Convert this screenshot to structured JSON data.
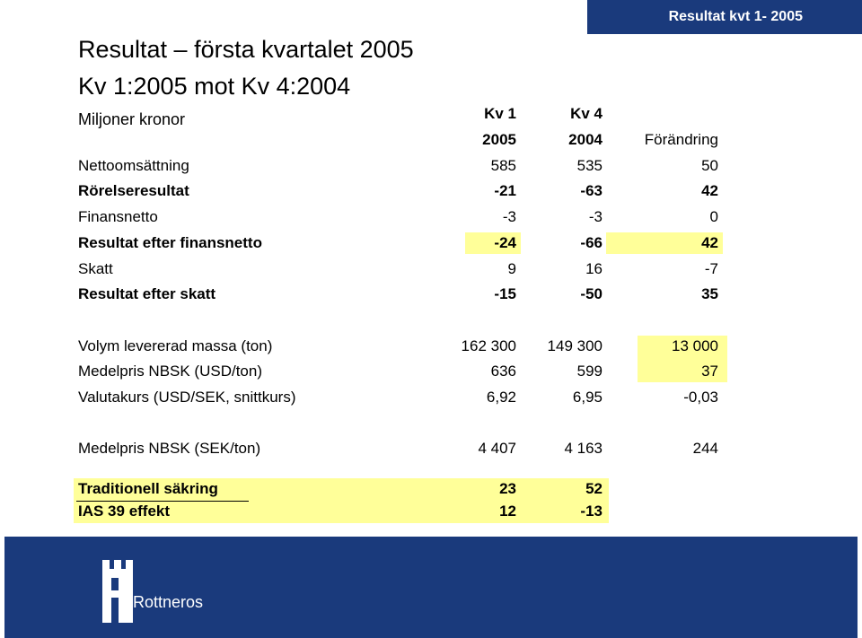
{
  "header": {
    "badge": "Resultat kvt 1- 2005"
  },
  "title": {
    "line1": "Resultat – första kvartalet 2005",
    "line2": "Kv 1:2005 mot Kv 4:2004"
  },
  "table": {
    "unit_label": "Miljoner kronor",
    "col1": {
      "top": "Kv 1",
      "bottom": "2005"
    },
    "col2": {
      "top": "Kv 4",
      "bottom": "2004"
    },
    "col3": {
      "bottom": "Förändring"
    },
    "rows": [
      {
        "label": "Nettoomsättning",
        "v1": "585",
        "v2": "535",
        "v3": "50"
      },
      {
        "label": "Rörelseresultat",
        "v1": "-21",
        "v2": "-63",
        "v3": "42"
      },
      {
        "label": "Finansnetto",
        "v1": "-3",
        "v2": "-3",
        "v3": "0"
      },
      {
        "label": "Resultat efter finansnetto",
        "v1": "-24",
        "v2": "-66",
        "v3": "42"
      },
      {
        "label": "Skatt",
        "v1": "9",
        "v2": "16",
        "v3": "-7"
      },
      {
        "label": "Resultat efter skatt",
        "v1": "-15",
        "v2": "-50",
        "v3": "35"
      }
    ],
    "rows2": [
      {
        "label": "Volym levererad massa (ton)",
        "v1": "162 300",
        "v2": "149 300",
        "v3": "13 000"
      },
      {
        "label": "Medelpris NBSK (USD/ton)",
        "v1": "636",
        "v2": "599",
        "v3": "37"
      },
      {
        "label": "Valutakurs (USD/SEK, snittkurs)",
        "v1": "6,92",
        "v2": "6,95",
        "v3": "-0,03"
      }
    ],
    "row3": {
      "label": "Medelpris NBSK (SEK/ton)",
      "v1": "4 407",
      "v2": "4 163",
      "v3": "244"
    },
    "rows4": [
      {
        "label": "Traditionell säkring",
        "v1": "23",
        "v2": "52"
      },
      {
        "label": "IAS  39  effekt",
        "v1": "12",
        "v2": "-13"
      }
    ]
  },
  "footer": {
    "logo_text": "Rottneros"
  },
  "colors": {
    "navy": "#1a3a7c",
    "highlight": "#ffff99"
  }
}
